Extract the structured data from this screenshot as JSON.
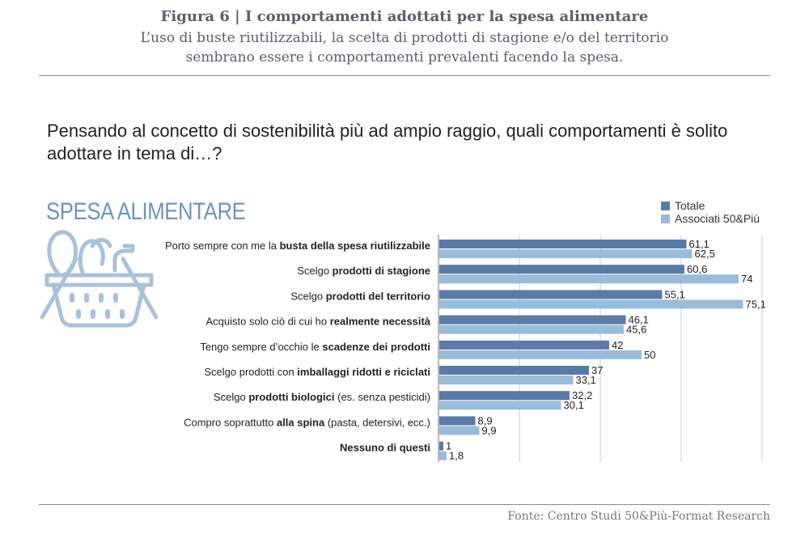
{
  "header": {
    "figure_title": "Figura 6 | I comportamenti adottati per la spesa alimentare",
    "subtitle_line1": "L’uso di buste riutilizzabili, la scelta di prodotti di stagione e/o del territorio",
    "subtitle_line2": "sembrano essere i comportamenti prevalenti facendo la spesa."
  },
  "question": "Pensando al concetto di sostenibilità più ad ampio raggio, quali comportamenti è solito adottare in tema di…?",
  "section_title": "SPESA ALIMENTARE",
  "source": "Fonte: Centro Studi 50&Più-Format Research",
  "icons": {
    "basket": "shopping-basket-icon"
  },
  "colors": {
    "totale": "#5b7aa8",
    "associati": "#9bbcd9",
    "title_blue": "#6f94bf"
  },
  "chart_data": {
    "type": "bar",
    "orientation": "horizontal",
    "xlim": [
      0,
      80
    ],
    "grid": true,
    "legend_position": "top-right",
    "categories": [
      [
        {
          "t": "Porto sempre con me la ",
          "b": false
        },
        {
          "t": "busta della spesa riutilizzabile",
          "b": true
        }
      ],
      [
        {
          "t": "Scelgo ",
          "b": false
        },
        {
          "t": "prodotti di stagione",
          "b": true
        }
      ],
      [
        {
          "t": "Scelgo ",
          "b": false
        },
        {
          "t": "prodotti del territorio",
          "b": true
        }
      ],
      [
        {
          "t": "Acquisto solo ciò di cui ho ",
          "b": false
        },
        {
          "t": "realmente necessità",
          "b": true
        }
      ],
      [
        {
          "t": "Tengo sempre d’occhio le ",
          "b": false
        },
        {
          "t": "scadenze dei prodotti",
          "b": true
        }
      ],
      [
        {
          "t": "Scelgo prodotti con ",
          "b": false
        },
        {
          "t": "imballaggi ridotti e riciclati",
          "b": true
        }
      ],
      [
        {
          "t": "Scelgo ",
          "b": false
        },
        {
          "t": "prodotti biologici",
          "b": true
        },
        {
          "t": " (es. senza pesticidi)",
          "b": false
        }
      ],
      [
        {
          "t": "Compro soprattutto ",
          "b": false
        },
        {
          "t": "alla spina",
          "b": true
        },
        {
          "t": " (pasta, detersivi, ecc.)",
          "b": false
        }
      ],
      [
        {
          "t": "Nessuno di questi",
          "b": true
        }
      ]
    ],
    "series": [
      {
        "name": "Totale",
        "values": [
          61.1,
          60.6,
          55.1,
          46.1,
          42,
          37,
          32.2,
          8.9,
          1
        ],
        "labels": [
          "61,1",
          "60,6",
          "55,1",
          "46,1",
          "42",
          "37",
          "32,2",
          "8,9",
          "1"
        ]
      },
      {
        "name": "Associati 50&Più",
        "values": [
          62.5,
          74,
          75.1,
          45.6,
          50,
          33.1,
          30.1,
          9.9,
          1.8
        ],
        "labels": [
          "62,5",
          "74",
          "75,1",
          "45,6",
          "50",
          "33,1",
          "30,1",
          "9,9",
          "1,8"
        ]
      }
    ]
  }
}
